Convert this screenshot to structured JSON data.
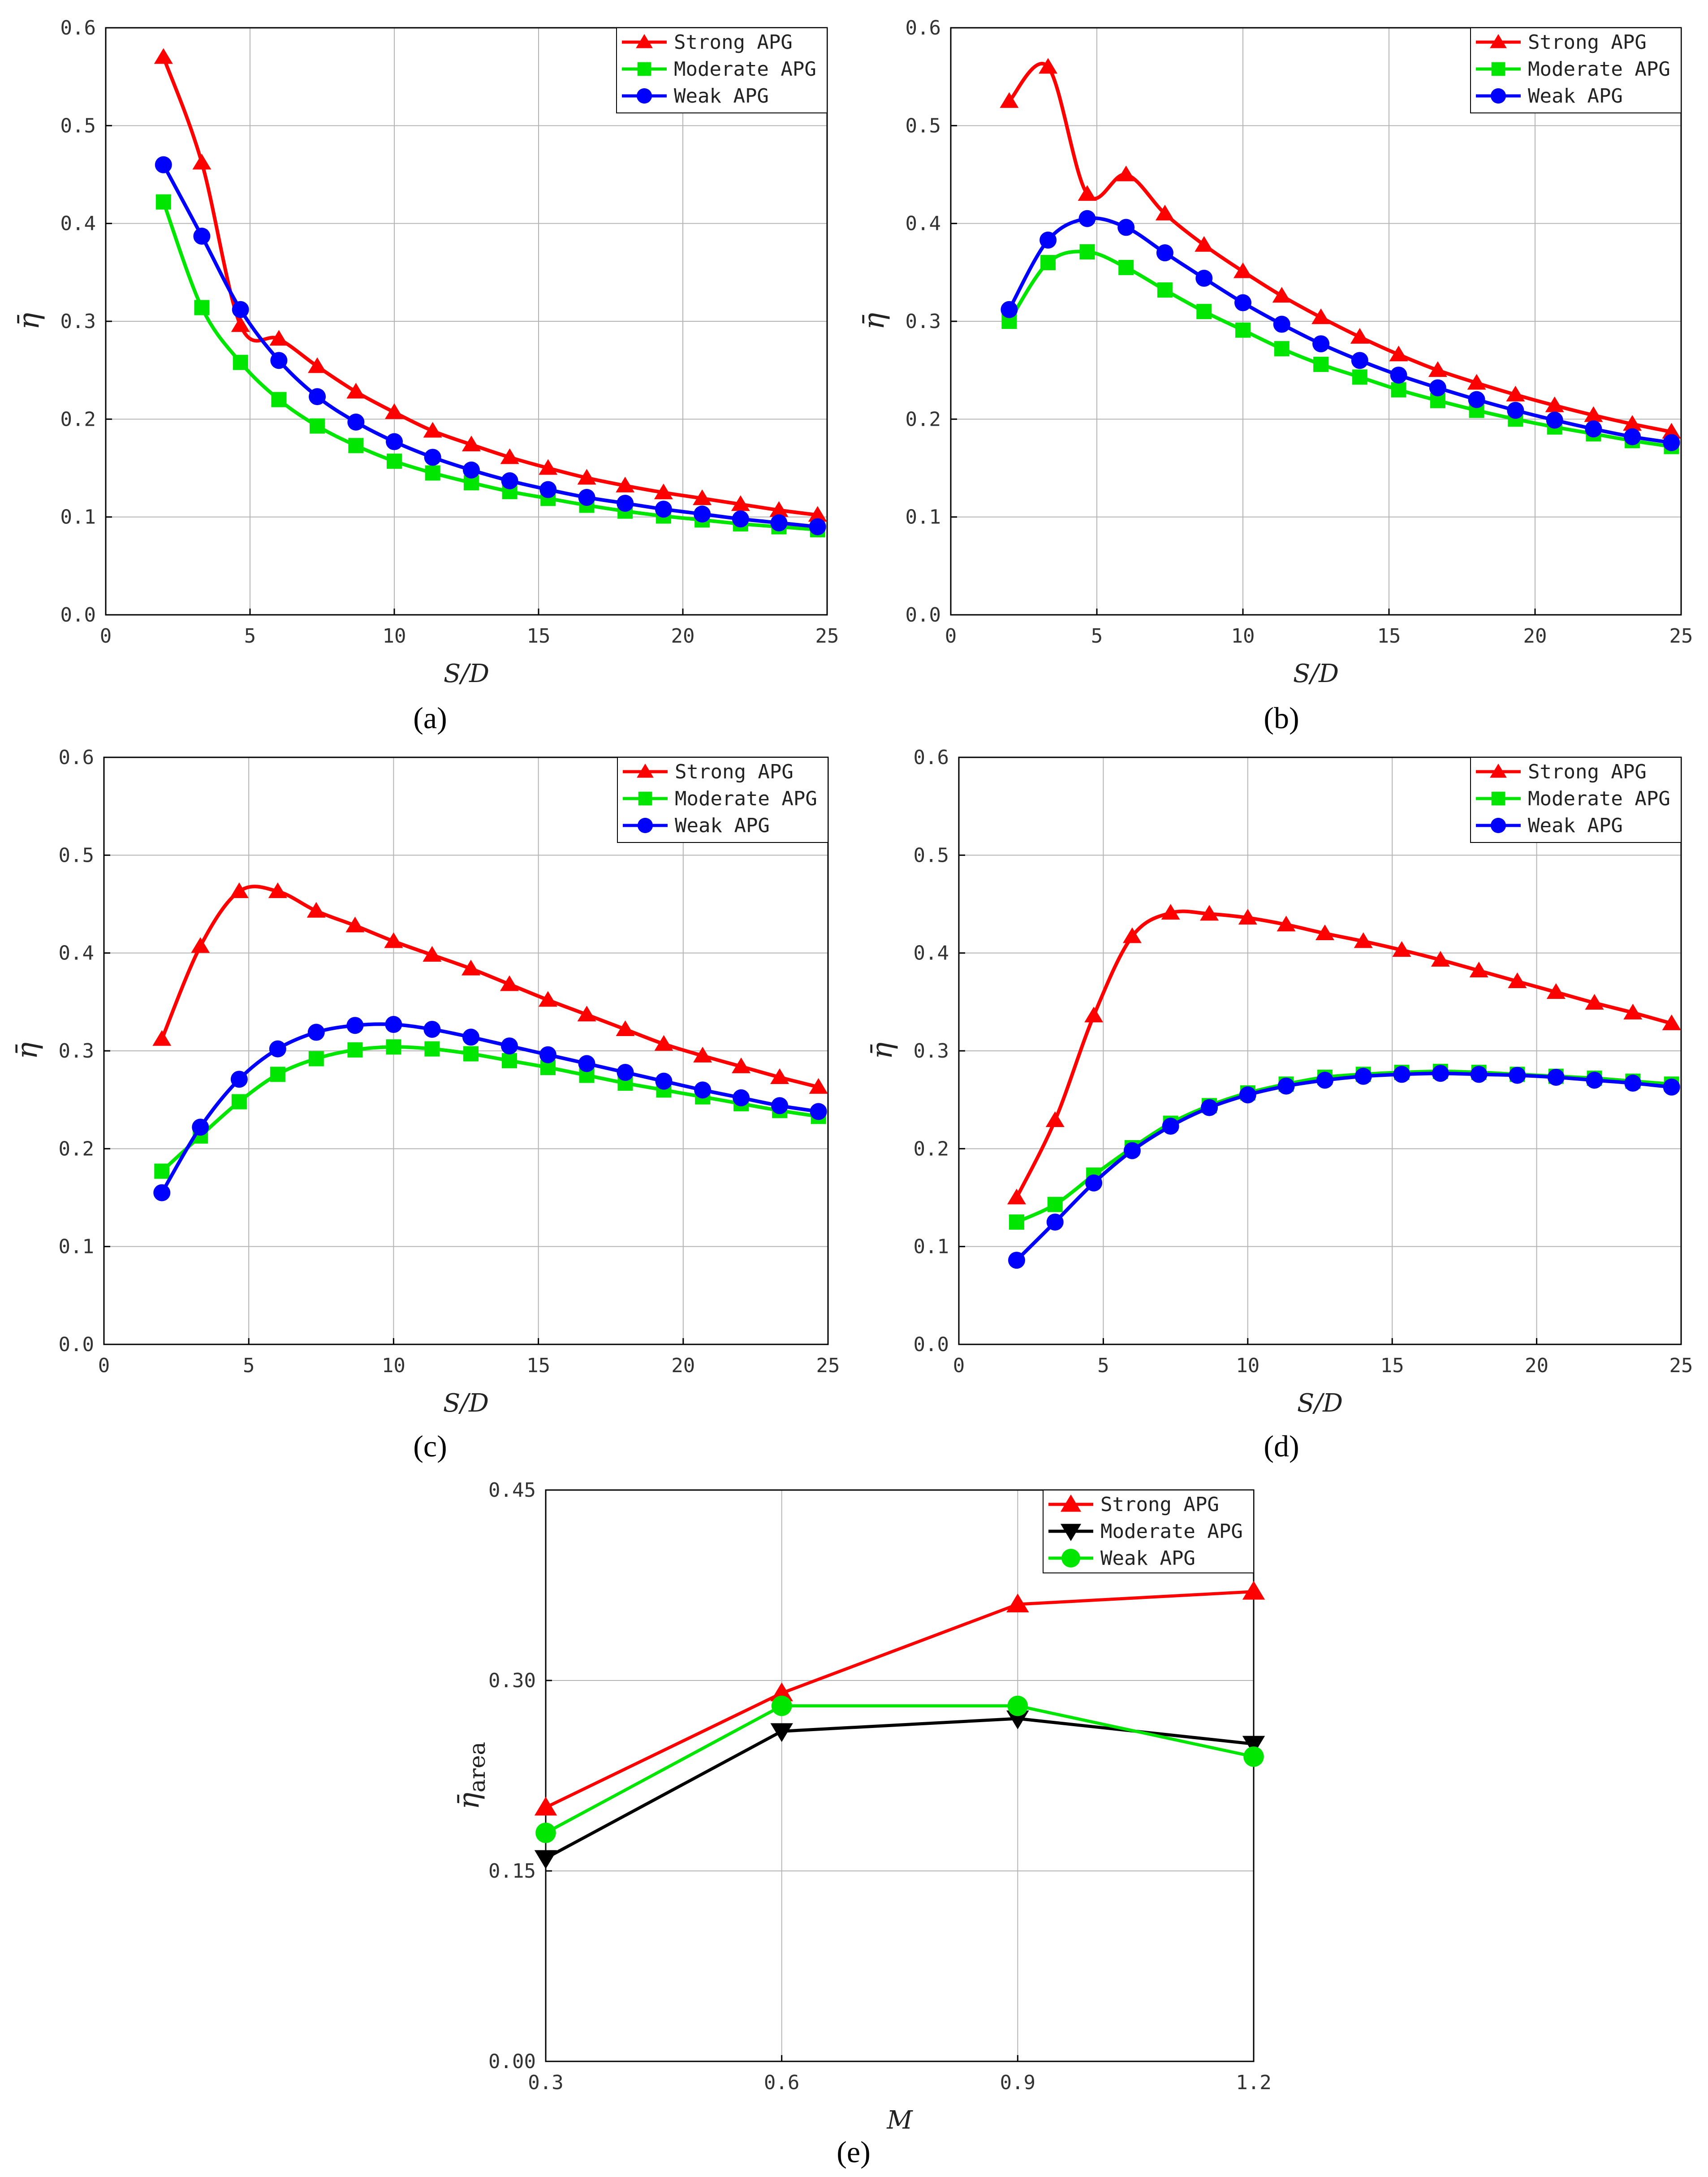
{
  "chart_data": [
    {
      "id": "a",
      "type": "line",
      "caption": "(a)",
      "xlabel": "S/D",
      "ylabel": "η̄",
      "xlim": [
        0,
        25
      ],
      "ylim": [
        0,
        0.6
      ],
      "xticks": [
        0,
        5,
        10,
        15,
        20,
        25
      ],
      "yticks": [
        0.0,
        0.1,
        0.2,
        0.3,
        0.4,
        0.5,
        0.6
      ],
      "xtick_labels": [
        "0",
        "5",
        "10",
        "15",
        "20",
        "25"
      ],
      "ytick_labels": [
        "0.0",
        "0.1",
        "0.2",
        "0.3",
        "0.4",
        "0.5",
        "0.6"
      ],
      "legend_position": "top-right",
      "x": [
        2,
        3.33,
        4.67,
        6,
        7.33,
        8.67,
        10,
        11.33,
        12.67,
        14,
        15.33,
        16.67,
        18,
        19.33,
        20.67,
        22,
        23.33,
        24.67
      ],
      "series": [
        {
          "name": "Strong APG",
          "color": "#ff0000",
          "marker": "triangle",
          "values": [
            0.57,
            0.462,
            0.296,
            0.282,
            0.254,
            0.228,
            0.207,
            0.188,
            0.174,
            0.161,
            0.15,
            0.14,
            0.132,
            0.125,
            0.119,
            0.113,
            0.107,
            0.102
          ]
        },
        {
          "name": "Moderate APG",
          "color": "#00e600",
          "marker": "square",
          "values": [
            0.422,
            0.314,
            0.258,
            0.22,
            0.193,
            0.173,
            0.157,
            0.145,
            0.135,
            0.126,
            0.119,
            0.112,
            0.106,
            0.101,
            0.097,
            0.093,
            0.09,
            0.087
          ]
        },
        {
          "name": "Weak APG",
          "color": "#0000ff",
          "marker": "circle",
          "values": [
            0.46,
            0.387,
            0.312,
            0.26,
            0.223,
            0.197,
            0.177,
            0.161,
            0.148,
            0.137,
            0.128,
            0.12,
            0.114,
            0.108,
            0.103,
            0.098,
            0.094,
            0.09
          ]
        }
      ]
    },
    {
      "id": "b",
      "type": "line",
      "caption": "(b)",
      "xlabel": "S/D",
      "ylabel": "η̄",
      "xlim": [
        0,
        25
      ],
      "ylim": [
        0,
        0.6
      ],
      "xticks": [
        0,
        5,
        10,
        15,
        20,
        25
      ],
      "yticks": [
        0.0,
        0.1,
        0.2,
        0.3,
        0.4,
        0.5,
        0.6
      ],
      "xtick_labels": [
        "0",
        "5",
        "10",
        "15",
        "20",
        "25"
      ],
      "ytick_labels": [
        "0.0",
        "0.1",
        "0.2",
        "0.3",
        "0.4",
        "0.5",
        "0.6"
      ],
      "legend_position": "top-right",
      "x": [
        2,
        3.33,
        4.67,
        6,
        7.33,
        8.67,
        10,
        11.33,
        12.67,
        14,
        15.33,
        16.67,
        18,
        19.33,
        20.67,
        22,
        23.33,
        24.67
      ],
      "series": [
        {
          "name": "Strong APG",
          "color": "#ff0000",
          "marker": "triangle",
          "values": [
            0.525,
            0.56,
            0.43,
            0.45,
            0.41,
            0.378,
            0.351,
            0.326,
            0.304,
            0.284,
            0.266,
            0.25,
            0.237,
            0.225,
            0.214,
            0.204,
            0.195,
            0.187
          ]
        },
        {
          "name": "Moderate APG",
          "color": "#00e600",
          "marker": "square",
          "values": [
            0.3,
            0.36,
            0.371,
            0.355,
            0.332,
            0.31,
            0.291,
            0.272,
            0.256,
            0.243,
            0.23,
            0.219,
            0.209,
            0.2,
            0.192,
            0.185,
            0.178,
            0.172
          ]
        },
        {
          "name": "Weak APG",
          "color": "#0000ff",
          "marker": "circle",
          "values": [
            0.312,
            0.383,
            0.405,
            0.396,
            0.37,
            0.344,
            0.319,
            0.297,
            0.277,
            0.26,
            0.245,
            0.232,
            0.22,
            0.209,
            0.199,
            0.19,
            0.182,
            0.176
          ]
        }
      ]
    },
    {
      "id": "c",
      "type": "line",
      "caption": "(c)",
      "xlabel": "S/D",
      "ylabel": "η̄",
      "xlim": [
        0,
        25
      ],
      "ylim": [
        0,
        0.6
      ],
      "xticks": [
        0,
        5,
        10,
        15,
        20,
        25
      ],
      "yticks": [
        0.0,
        0.1,
        0.2,
        0.3,
        0.4,
        0.5,
        0.6
      ],
      "xtick_labels": [
        "0",
        "5",
        "10",
        "15",
        "20",
        "25"
      ],
      "ytick_labels": [
        "0.0",
        "0.1",
        "0.2",
        "0.3",
        "0.4",
        "0.5",
        "0.6"
      ],
      "legend_position": "top-right",
      "x": [
        2,
        3.33,
        4.67,
        6,
        7.33,
        8.67,
        10,
        11.33,
        12.67,
        14,
        15.33,
        16.67,
        18,
        19.33,
        20.67,
        22,
        23.33,
        24.67
      ],
      "series": [
        {
          "name": "Strong APG",
          "color": "#ff0000",
          "marker": "triangle",
          "values": [
            0.312,
            0.407,
            0.463,
            0.463,
            0.443,
            0.428,
            0.412,
            0.398,
            0.384,
            0.368,
            0.352,
            0.337,
            0.322,
            0.307,
            0.295,
            0.284,
            0.273,
            0.263
          ]
        },
        {
          "name": "Moderate APG",
          "color": "#00e600",
          "marker": "square",
          "values": [
            0.177,
            0.213,
            0.248,
            0.276,
            0.292,
            0.301,
            0.304,
            0.302,
            0.297,
            0.29,
            0.283,
            0.275,
            0.267,
            0.26,
            0.253,
            0.246,
            0.239,
            0.233
          ]
        },
        {
          "name": "Weak APG",
          "color": "#0000ff",
          "marker": "circle",
          "values": [
            0.155,
            0.222,
            0.271,
            0.302,
            0.319,
            0.326,
            0.327,
            0.322,
            0.314,
            0.305,
            0.296,
            0.287,
            0.278,
            0.269,
            0.26,
            0.252,
            0.244,
            0.238
          ]
        }
      ]
    },
    {
      "id": "d",
      "type": "line",
      "caption": "(d)",
      "xlabel": "S/D",
      "ylabel": "η̄",
      "xlim": [
        0,
        25
      ],
      "ylim": [
        0,
        0.6
      ],
      "xticks": [
        0,
        5,
        10,
        15,
        20,
        25
      ],
      "yticks": [
        0.0,
        0.1,
        0.2,
        0.3,
        0.4,
        0.5,
        0.6
      ],
      "xtick_labels": [
        "0",
        "5",
        "10",
        "15",
        "20",
        "25"
      ],
      "ytick_labels": [
        "0.0",
        "0.1",
        "0.2",
        "0.3",
        "0.4",
        "0.5",
        "0.6"
      ],
      "legend_position": "top-right",
      "x": [
        2,
        3.33,
        4.67,
        6,
        7.33,
        8.67,
        10,
        11.33,
        12.67,
        14,
        15.33,
        16.67,
        18,
        19.33,
        20.67,
        22,
        23.33,
        24.67
      ],
      "series": [
        {
          "name": "Strong APG",
          "color": "#ff0000",
          "marker": "triangle",
          "values": [
            0.15,
            0.229,
            0.336,
            0.417,
            0.441,
            0.44,
            0.436,
            0.429,
            0.42,
            0.412,
            0.403,
            0.393,
            0.382,
            0.371,
            0.36,
            0.349,
            0.339,
            0.328
          ]
        },
        {
          "name": "Moderate APG",
          "color": "#00e600",
          "marker": "square",
          "values": [
            0.125,
            0.143,
            0.173,
            0.201,
            0.226,
            0.244,
            0.257,
            0.266,
            0.273,
            0.276,
            0.278,
            0.279,
            0.278,
            0.276,
            0.274,
            0.272,
            0.269,
            0.266
          ]
        },
        {
          "name": "Weak APG",
          "color": "#0000ff",
          "marker": "circle",
          "values": [
            0.086,
            0.125,
            0.165,
            0.198,
            0.223,
            0.242,
            0.255,
            0.264,
            0.27,
            0.274,
            0.276,
            0.277,
            0.276,
            0.275,
            0.273,
            0.27,
            0.267,
            0.263
          ]
        }
      ]
    },
    {
      "id": "e",
      "type": "line",
      "caption": "(e)",
      "xlabel": "M",
      "ylabel": "η̄",
      "ylabel_sub": "area",
      "xlim": [
        0.3,
        1.2
      ],
      "ylim": [
        0,
        0.45
      ],
      "xticks": [
        0.3,
        0.6,
        0.9,
        1.2
      ],
      "yticks": [
        0.0,
        0.15,
        0.3,
        0.45
      ],
      "xtick_labels": [
        "0.3",
        "0.6",
        "0.9",
        "1.2"
      ],
      "ytick_labels": [
        "0.00",
        "0.15",
        "0.30",
        "0.45"
      ],
      "legend_position": "top-right",
      "x": [
        0.3,
        0.6,
        0.9,
        1.2
      ],
      "series": [
        {
          "name": "Strong APG",
          "color": "#ff0000",
          "marker": "triangle",
          "values": [
            0.2,
            0.29,
            0.36,
            0.37
          ]
        },
        {
          "name": "Moderate APG",
          "color": "#000000",
          "marker": "triangle-down",
          "values": [
            0.16,
            0.26,
            0.27,
            0.25
          ]
        },
        {
          "name": "Weak APG",
          "color": "#00e600",
          "marker": "circle",
          "values": [
            0.18,
            0.28,
            0.28,
            0.24
          ]
        }
      ]
    }
  ]
}
